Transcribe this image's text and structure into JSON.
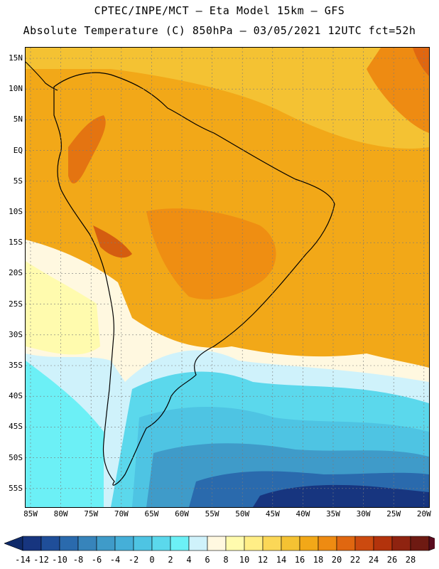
{
  "header": {
    "line1": "CPTEC/INPE/MCT —  Eta Model 15km — GFS",
    "line2": "Absolute Temperature (C) 850hPa — 03/05/2021 12UTC fct=52h"
  },
  "axes": {
    "lat_labels": [
      "15N",
      "10N",
      "5N",
      "EQ",
      "5S",
      "10S",
      "15S",
      "20S",
      "25S",
      "30S",
      "35S",
      "40S",
      "45S",
      "50S",
      "55S"
    ],
    "lon_labels": [
      "85W",
      "80W",
      "75W",
      "70W",
      "65W",
      "60W",
      "55W",
      "50W",
      "45W",
      "40W",
      "35W",
      "30W",
      "25W",
      "20W"
    ]
  },
  "colorbar": {
    "labels": [
      "-14",
      "-12",
      "-10",
      "-8",
      "-6",
      "-4",
      "-2",
      "0",
      "2",
      "4",
      "6",
      "8",
      "10",
      "12",
      "14",
      "16",
      "18",
      "20",
      "22",
      "24",
      "26",
      "28"
    ],
    "colors": [
      "#17357f",
      "#1f4e99",
      "#2a6aad",
      "#3784bb",
      "#3f9bc9",
      "#45afd8",
      "#4ec4e3",
      "#5bd8ec",
      "#6cf0f6",
      "#cff2fb",
      "#fff8e0",
      "#fffbae",
      "#ffee86",
      "#fbd757",
      "#f4c233",
      "#f2a818",
      "#ee8b12",
      "#e06710",
      "#cc4a0f",
      "#b3330c",
      "#8f2310",
      "#6e1a12"
    ]
  }
}
